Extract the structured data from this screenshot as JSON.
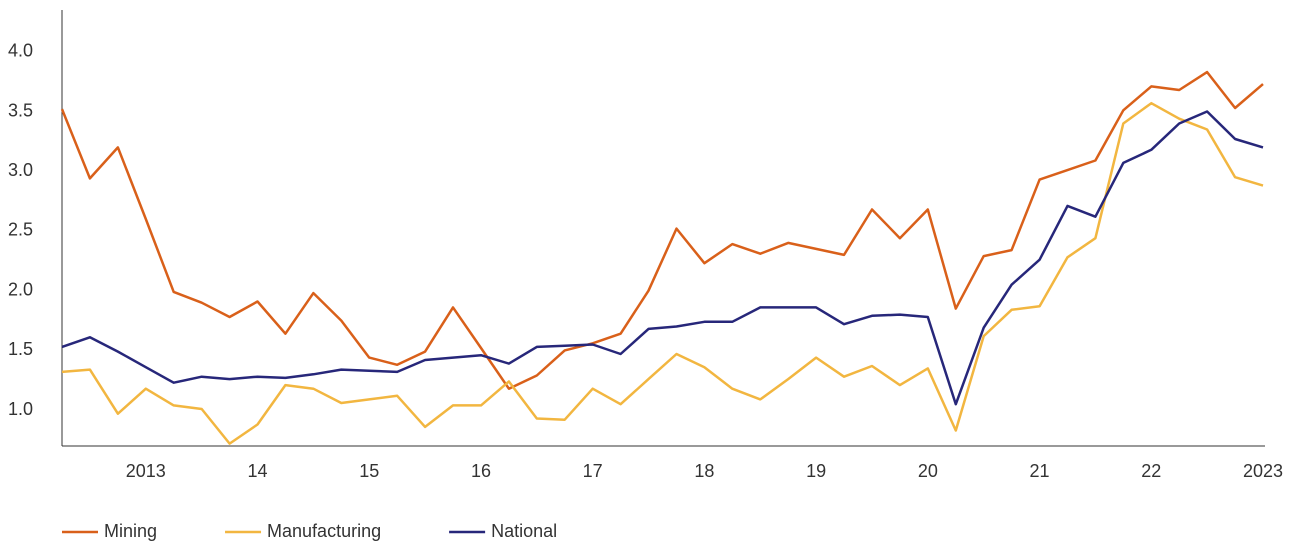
{
  "chart_data": {
    "type": "line",
    "x": [
      2012.25,
      2012.5,
      2012.75,
      2013,
      2013.25,
      2013.5,
      2013.75,
      2014,
      2014.25,
      2014.5,
      2014.75,
      2015,
      2015.25,
      2015.5,
      2015.75,
      2016,
      2016.25,
      2016.5,
      2016.75,
      2017,
      2017.25,
      2017.5,
      2017.75,
      2018,
      2018.25,
      2018.5,
      2018.75,
      2019,
      2019.25,
      2019.5,
      2019.75,
      2020,
      2020.25,
      2020.5,
      2020.75,
      2021,
      2021.25,
      2021.5,
      2021.75,
      2022,
      2022.25,
      2022.5,
      2022.75,
      2023
    ],
    "series": [
      {
        "name": "Mining",
        "color": "#d9601a",
        "values": [
          3.52,
          2.94,
          3.2,
          2.6,
          1.99,
          1.9,
          1.78,
          1.91,
          1.64,
          1.98,
          1.75,
          1.44,
          1.38,
          1.49,
          1.86,
          1.52,
          1.18,
          1.29,
          1.5,
          1.56,
          1.64,
          2.0,
          2.52,
          2.23,
          2.39,
          2.31,
          2.4,
          2.35,
          2.3,
          2.68,
          2.44,
          2.68,
          1.85,
          2.29,
          2.34,
          2.93,
          3.01,
          3.09,
          3.51,
          3.71,
          3.68,
          3.83,
          3.53,
          3.73
        ]
      },
      {
        "name": "Manufacturing",
        "color": "#f2b640",
        "values": [
          1.32,
          1.34,
          0.97,
          1.18,
          1.04,
          1.01,
          0.72,
          0.88,
          1.21,
          1.18,
          1.06,
          1.09,
          1.12,
          0.86,
          1.04,
          1.04,
          1.24,
          0.93,
          0.92,
          1.18,
          1.05,
          1.26,
          1.47,
          1.36,
          1.18,
          1.09,
          1.26,
          1.44,
          1.28,
          1.37,
          1.21,
          1.35,
          0.83,
          1.62,
          1.84,
          1.87,
          2.28,
          2.44,
          3.4,
          3.57,
          3.44,
          3.35,
          2.95,
          2.88
        ]
      },
      {
        "name": "National",
        "color": "#27277a",
        "values": [
          1.53,
          1.61,
          1.49,
          1.36,
          1.23,
          1.28,
          1.26,
          1.28,
          1.27,
          1.3,
          1.34,
          1.33,
          1.32,
          1.42,
          1.44,
          1.46,
          1.39,
          1.53,
          1.54,
          1.55,
          1.47,
          1.68,
          1.7,
          1.74,
          1.74,
          1.86,
          1.86,
          1.86,
          1.72,
          1.79,
          1.8,
          1.78,
          1.05,
          1.69,
          2.05,
          2.26,
          2.71,
          2.62,
          3.07,
          3.18,
          3.4,
          3.5,
          3.27,
          3.2
        ]
      }
    ],
    "xlim": [
      2012.25,
      2023
    ],
    "xticks": [
      {
        "value": 2013,
        "label": "2013"
      },
      {
        "value": 2014,
        "label": "14"
      },
      {
        "value": 2015,
        "label": "15"
      },
      {
        "value": 2016,
        "label": "16"
      },
      {
        "value": 2017,
        "label": "17"
      },
      {
        "value": 2018,
        "label": "18"
      },
      {
        "value": 2019,
        "label": "19"
      },
      {
        "value": 2020,
        "label": "20"
      },
      {
        "value": 2021,
        "label": "21"
      },
      {
        "value": 2022,
        "label": "22"
      },
      {
        "value": 2023,
        "label": "2023"
      }
    ],
    "ylim": [
      0.7,
      4.35
    ],
    "yticks": [
      {
        "value": 1.0,
        "label": "1.0"
      },
      1.5,
      {
        "value": 2.0,
        "label": "2.0"
      },
      2.5,
      {
        "value": 3.0,
        "label": "3.0"
      },
      3.5,
      {
        "value": 4.0,
        "label": "4.0"
      }
    ],
    "grid": false,
    "legend": "bottom-left"
  }
}
